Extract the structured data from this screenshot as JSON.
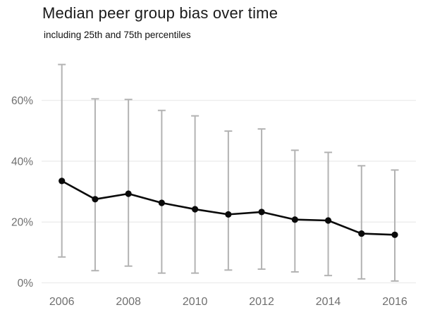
{
  "chart_data": {
    "type": "line",
    "title": "Median peer group bias over time",
    "subtitle": "including 25th and 75th percentiles",
    "x": [
      2006,
      2007,
      2008,
      2009,
      2010,
      2011,
      2012,
      2013,
      2014,
      2015,
      2016
    ],
    "series": [
      {
        "name": "median",
        "values": [
          33.5,
          27.5,
          29.3,
          26.3,
          24.2,
          22.5,
          23.3,
          20.8,
          20.5,
          16.2,
          15.8
        ]
      },
      {
        "name": "25th percentile",
        "values": [
          8.5,
          4.0,
          5.5,
          3.2,
          3.2,
          4.2,
          4.5,
          3.6,
          2.4,
          1.3,
          0.6
        ]
      },
      {
        "name": "75th percentile",
        "values": [
          71.8,
          60.5,
          60.3,
          56.7,
          54.9,
          49.9,
          50.6,
          43.6,
          42.9,
          38.5,
          37.1
        ]
      }
    ],
    "y_ticks": [
      0,
      20,
      40,
      60
    ],
    "y_tick_labels": [
      "0%",
      "20%",
      "40%",
      "60%"
    ],
    "x_tick_years": [
      2006,
      2008,
      2010,
      2012,
      2014,
      2016
    ],
    "ylim": [
      0,
      75
    ],
    "grid": "horizontal",
    "legend": "none",
    "colors": {
      "title": "#1a1a1a",
      "subtitle": "#111111",
      "line": "#0a0a0a",
      "marker": "#0a0a0a",
      "whisker": "#b3b3b3",
      "grid": "#ececec",
      "axis_label": "#6f6f6f"
    }
  }
}
